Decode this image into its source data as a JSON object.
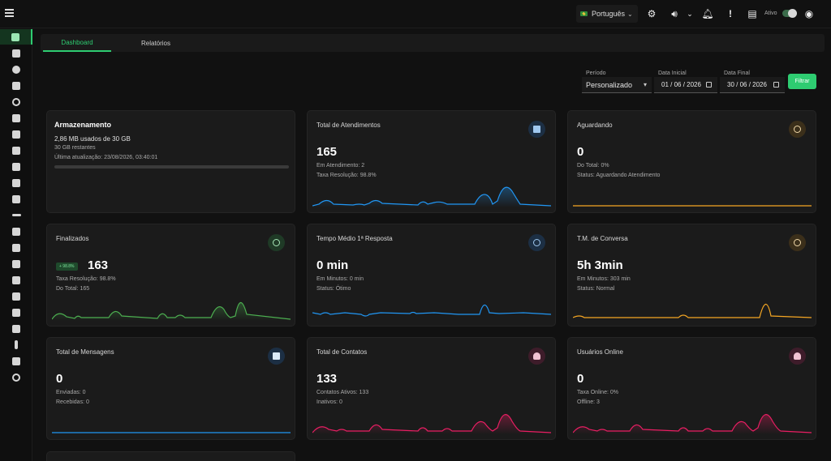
{
  "topbar": {
    "language": "Português",
    "ativo_label": "Ativo"
  },
  "tabs": [
    {
      "label": "Dashboard",
      "active": true
    },
    {
      "label": "Relatórios",
      "active": false
    }
  ],
  "filters": {
    "periodo_label": "Período",
    "periodo_value": "Personalizado",
    "data_inicial_label": "Data Inicial",
    "data_inicial_value": "01 / 06 / 2026",
    "data_final_label": "Data Final",
    "data_final_value": "30 / 06 / 2026",
    "filter_button": "Filtrar"
  },
  "storage": {
    "title": "Armazenamento",
    "used": "2,86 MB usados de 30 GB",
    "remaining": "30 GB restantes",
    "updated": "Última atualização: 23/08/2026, 03:40:01",
    "percent_used": 0.01
  },
  "cards": {
    "atendimentos": {
      "title": "Total de Atendimentos",
      "value": "165",
      "line1": "Em Atendimento: 2",
      "line2": "Taxa Resolução: 98.8%",
      "color": "#2196f3",
      "icon": "clipboard-icon"
    },
    "aguardando": {
      "title": "Aguardando",
      "value": "0",
      "line1": "Do Total: 0%",
      "line2": "Status: Aguardando Atendimento",
      "color": "#f5a623",
      "icon": "clock-icon"
    },
    "finalizados": {
      "title": "Finalizados",
      "value": "163",
      "badge": "+ 98.8%",
      "line1": "Taxa Resolução: 98.8%",
      "line2": "Do Total: 165",
      "color": "#4caf50",
      "icon": "check-circle-icon"
    },
    "tempo_medio": {
      "title": "Tempo Médio 1ª Resposta",
      "value": "0 min",
      "line1": "Em Minutos: 0 min",
      "line2": "Status: Ótimo",
      "color": "#2196f3",
      "icon": "clock-icon"
    },
    "tm_conversa": {
      "title": "T.M. de Conversa",
      "value": "5h 3min",
      "line1": "Em Minutos: 303 min",
      "line2": "Status: Normal",
      "color": "#f5a623",
      "icon": "clock-icon"
    },
    "mensagens": {
      "title": "Total de Mensagens",
      "value": "0",
      "line1": "Enviadas: 0",
      "line2": "Recebidas: 0",
      "color": "#2196f3",
      "icon": "chat-icon"
    },
    "contatos": {
      "title": "Total de Contatos",
      "value": "133",
      "line1": "Contatos Ativos: 133",
      "line2": "Inativos: 0",
      "color": "#e91e63",
      "icon": "people-icon"
    },
    "usuarios": {
      "title": "Usuários Online",
      "value": "0",
      "line1": "Taxa Online: 0%",
      "line2": "Offline: 3",
      "color": "#e91e63",
      "icon": "people-icon"
    }
  }
}
